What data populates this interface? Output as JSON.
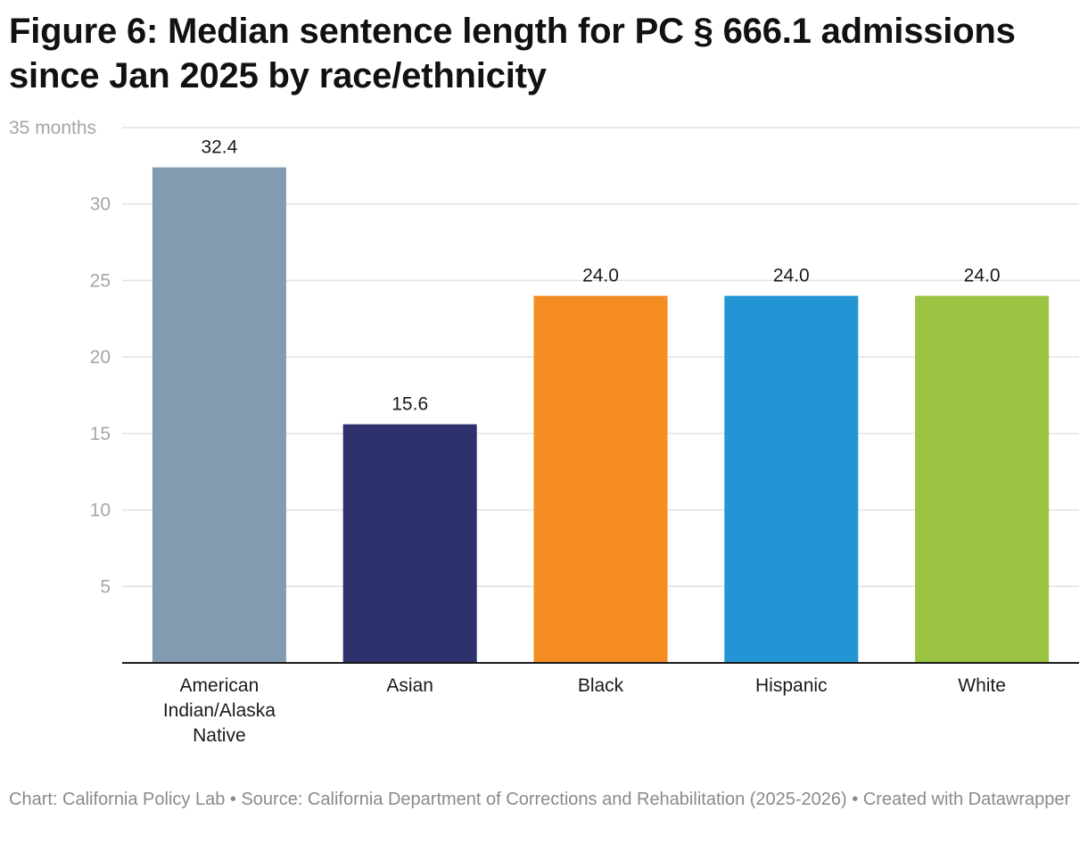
{
  "title": "Figure 6: Median sentence length for PC § 666.1 admissions since Jan 2025 by race/ethnicity",
  "footer": {
    "text": "Chart: California Policy Lab • Source: California Department of Corrections and Rehabilitation (2025-2026) • Created with Datawrapper"
  },
  "chart_data": {
    "type": "bar",
    "title": "Figure 6: Median sentence length for PC § 666.1 admissions since Jan 2025 by race/ethnicity",
    "xlabel": "",
    "ylabel": "",
    "ylim": [
      0,
      35
    ],
    "grid": true,
    "y_ticks": [
      {
        "value": 35,
        "label": "35 months"
      },
      {
        "value": 30,
        "label": "30"
      },
      {
        "value": 25,
        "label": "25"
      },
      {
        "value": 20,
        "label": "20"
      },
      {
        "value": 15,
        "label": "15"
      },
      {
        "value": 10,
        "label": "10"
      },
      {
        "value": 5,
        "label": "5"
      }
    ],
    "categories": [
      [
        "American",
        "Indian/Alaska",
        "Native"
      ],
      [
        "Asian"
      ],
      [
        "Black"
      ],
      [
        "Hispanic"
      ],
      [
        "White"
      ]
    ],
    "values": [
      32.4,
      15.6,
      24.0,
      24.0,
      24.0
    ],
    "value_labels": [
      "32.4",
      "15.6",
      "24.0",
      "24.0",
      "24.0"
    ],
    "colors": [
      "#829bb0",
      "#2e316d",
      "#f48c22",
      "#2395d4",
      "#9bc442"
    ]
  }
}
